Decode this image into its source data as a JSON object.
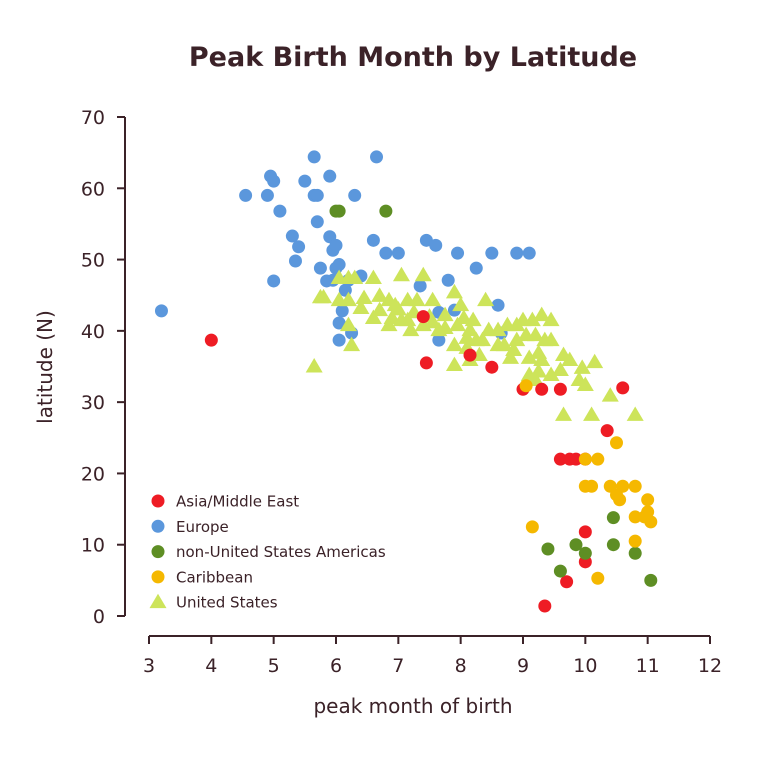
{
  "chart_data": {
    "type": "scatter",
    "title": "Peak Birth Month by Latitude",
    "xlabel": "peak month of birth",
    "ylabel": "latitude (N)",
    "xlim": [
      3,
      12
    ],
    "ylim": [
      0,
      70
    ],
    "xticks": [
      "3",
      "4",
      "5",
      "6",
      "7",
      "8",
      "9",
      "10",
      "11",
      "12"
    ],
    "yticks": [
      "0",
      "10",
      "20",
      "30",
      "40",
      "50",
      "60",
      "70"
    ],
    "grid": false,
    "legend_placement": "bottom-left",
    "series": [
      {
        "name": "Asia/Middle East",
        "marker": "circle",
        "color": "#ee1c24",
        "points": [
          [
            4.0,
            38.7
          ],
          [
            7.45,
            35.5
          ],
          [
            7.4,
            42
          ],
          [
            8.5,
            34.9
          ],
          [
            8.15,
            36.6
          ],
          [
            9.0,
            31.8
          ],
          [
            9.3,
            31.8
          ],
          [
            9.6,
            31.8
          ],
          [
            10.6,
            32
          ],
          [
            10.35,
            26
          ],
          [
            9.6,
            22
          ],
          [
            9.75,
            22
          ],
          [
            9.85,
            22
          ],
          [
            10.0,
            22
          ],
          [
            10.0,
            11.8
          ],
          [
            10.0,
            7.6
          ],
          [
            9.7,
            4.8
          ],
          [
            9.35,
            1.4
          ]
        ]
      },
      {
        "name": "Europe",
        "marker": "circle",
        "color": "#5b97dc",
        "points": [
          [
            3.2,
            42.8
          ],
          [
            4.55,
            59
          ],
          [
            4.9,
            59
          ],
          [
            4.95,
            61.7
          ],
          [
            5.0,
            61
          ],
          [
            5.1,
            56.8
          ],
          [
            5.3,
            53.3
          ],
          [
            5.4,
            51.8
          ],
          [
            5.35,
            49.8
          ],
          [
            5.5,
            61
          ],
          [
            5.0,
            47
          ],
          [
            5.65,
            64.4
          ],
          [
            5.65,
            59
          ],
          [
            5.7,
            59
          ],
          [
            5.7,
            55.3
          ],
          [
            5.9,
            61.7
          ],
          [
            5.9,
            53.2
          ],
          [
            5.95,
            51.3
          ],
          [
            6.0,
            52
          ],
          [
            6.3,
            59
          ],
          [
            6.65,
            64.4
          ],
          [
            6.6,
            52.7
          ],
          [
            6.0,
            48.8
          ],
          [
            5.75,
            48.8
          ],
          [
            5.85,
            47
          ],
          [
            6.05,
            49.3
          ],
          [
            5.95,
            47.1
          ],
          [
            6.2,
            47.1
          ],
          [
            6.4,
            47.7
          ],
          [
            6.8,
            50.9
          ],
          [
            7.0,
            50.9
          ],
          [
            6.15,
            45.7
          ],
          [
            6.1,
            42.8
          ],
          [
            6.05,
            41.1
          ],
          [
            6.05,
            38.7
          ],
          [
            6.25,
            39.7
          ],
          [
            7.45,
            52.7
          ],
          [
            7.6,
            52
          ],
          [
            7.8,
            47.1
          ],
          [
            7.95,
            50.9
          ],
          [
            8.25,
            48.8
          ],
          [
            8.5,
            50.9
          ],
          [
            8.9,
            50.9
          ],
          [
            9.1,
            50.9
          ],
          [
            7.65,
            38.7
          ],
          [
            8.65,
            39.7
          ],
          [
            7.35,
            46.3
          ],
          [
            7.9,
            42.9
          ],
          [
            8.6,
            43.6
          ],
          [
            7.65,
            42.6
          ]
        ]
      },
      {
        "name": "non-United States Americas",
        "marker": "circle",
        "color": "#5e8e24",
        "points": [
          [
            6.0,
            56.8
          ],
          [
            6.05,
            56.8
          ],
          [
            6.8,
            56.8
          ],
          [
            9.4,
            9.4
          ],
          [
            9.6,
            6.3
          ],
          [
            9.85,
            10
          ],
          [
            10.0,
            8.8
          ],
          [
            10.45,
            10
          ],
          [
            10.45,
            13.8
          ],
          [
            10.8,
            8.8
          ],
          [
            11.05,
            5.0
          ]
        ]
      },
      {
        "name": "Caribbean",
        "marker": "circle",
        "color": "#f5b800",
        "points": [
          [
            9.05,
            32.3
          ],
          [
            9.15,
            12.5
          ],
          [
            10.0,
            22
          ],
          [
            10.2,
            22
          ],
          [
            10.0,
            18.2
          ],
          [
            10.1,
            18.2
          ],
          [
            10.4,
            18.2
          ],
          [
            10.6,
            18.2
          ],
          [
            10.8,
            18.2
          ],
          [
            10.5,
            24.3
          ],
          [
            10.5,
            17
          ],
          [
            10.55,
            16.3
          ],
          [
            11.0,
            16.3
          ],
          [
            10.8,
            13.9
          ],
          [
            10.95,
            13.9
          ],
          [
            11.05,
            13.2
          ],
          [
            11.0,
            14.6
          ],
          [
            10.8,
            10.5
          ],
          [
            10.2,
            5.3
          ]
        ]
      },
      {
        "name": "United States",
        "marker": "triangle",
        "color": "#cde45a",
        "points": [
          [
            5.65,
            35
          ],
          [
            5.8,
            44.7
          ],
          [
            5.75,
            44.7
          ],
          [
            6.05,
            47.4
          ],
          [
            6.2,
            47.4
          ],
          [
            6.3,
            47.4
          ],
          [
            6.6,
            47.4
          ],
          [
            7.05,
            47.8
          ],
          [
            7.4,
            47.8
          ],
          [
            6.25,
            38
          ],
          [
            6.2,
            40.8
          ],
          [
            6.05,
            44.3
          ],
          [
            6.2,
            44.3
          ],
          [
            6.45,
            44.6
          ],
          [
            6.7,
            44.9
          ],
          [
            6.85,
            44.3
          ],
          [
            6.9,
            41.8
          ],
          [
            6.6,
            41.8
          ],
          [
            7.05,
            41.5
          ],
          [
            7.15,
            41.5
          ],
          [
            7.25,
            42.6
          ],
          [
            7.55,
            44.3
          ],
          [
            7.55,
            41.2
          ],
          [
            7.75,
            42.2
          ],
          [
            7.9,
            45.4
          ],
          [
            8.0,
            43.6
          ],
          [
            8.05,
            41.8
          ],
          [
            8.15,
            40.1
          ],
          [
            8.25,
            38.7
          ],
          [
            8.4,
            44.3
          ],
          [
            8.45,
            40.1
          ],
          [
            8.6,
            38
          ],
          [
            8.75,
            40.8
          ],
          [
            8.8,
            36.2
          ],
          [
            8.9,
            40.8
          ],
          [
            8.9,
            38.7
          ],
          [
            9.05,
            39.4
          ],
          [
            9.2,
            39.4
          ],
          [
            9.35,
            38.7
          ],
          [
            9.45,
            38.7
          ],
          [
            9.1,
            36.2
          ],
          [
            9.3,
            35.9
          ],
          [
            9.65,
            36.6
          ],
          [
            9.75,
            35.9
          ],
          [
            10.15,
            35.6
          ],
          [
            9.1,
            33.8
          ],
          [
            9.2,
            33.1
          ],
          [
            9.45,
            33.8
          ],
          [
            9.9,
            33.1
          ],
          [
            10.0,
            32.4
          ],
          [
            10.4,
            30.9
          ],
          [
            9.65,
            28.2
          ],
          [
            10.1,
            28.2
          ],
          [
            10.8,
            28.2
          ],
          [
            7.9,
            35.2
          ],
          [
            8.15,
            35.9
          ],
          [
            8.3,
            36.6
          ],
          [
            7.9,
            38
          ],
          [
            7.65,
            40.1
          ],
          [
            7.4,
            40.8
          ],
          [
            7.2,
            40.1
          ],
          [
            6.85,
            40.8
          ],
          [
            6.7,
            42.9
          ],
          [
            6.4,
            43.2
          ],
          [
            6.95,
            43.6
          ],
          [
            7.15,
            44.3
          ],
          [
            7.3,
            44.3
          ],
          [
            7.75,
            40.4
          ],
          [
            7.95,
            40.8
          ],
          [
            8.2,
            41.5
          ],
          [
            8.35,
            38.7
          ],
          [
            8.6,
            40.1
          ],
          [
            8.7,
            38
          ],
          [
            8.85,
            37.3
          ],
          [
            9.25,
            36.9
          ],
          [
            9.45,
            41.5
          ],
          [
            9.3,
            42.2
          ],
          [
            9.15,
            41.5
          ],
          [
            9.0,
            41.5
          ],
          [
            9.25,
            34.3
          ],
          [
            9.6,
            34.5
          ],
          [
            9.95,
            34.8
          ],
          [
            8.1,
            37.6
          ],
          [
            7.0,
            43
          ],
          [
            7.5,
            42
          ],
          [
            8.1,
            39
          ]
        ]
      }
    ]
  }
}
